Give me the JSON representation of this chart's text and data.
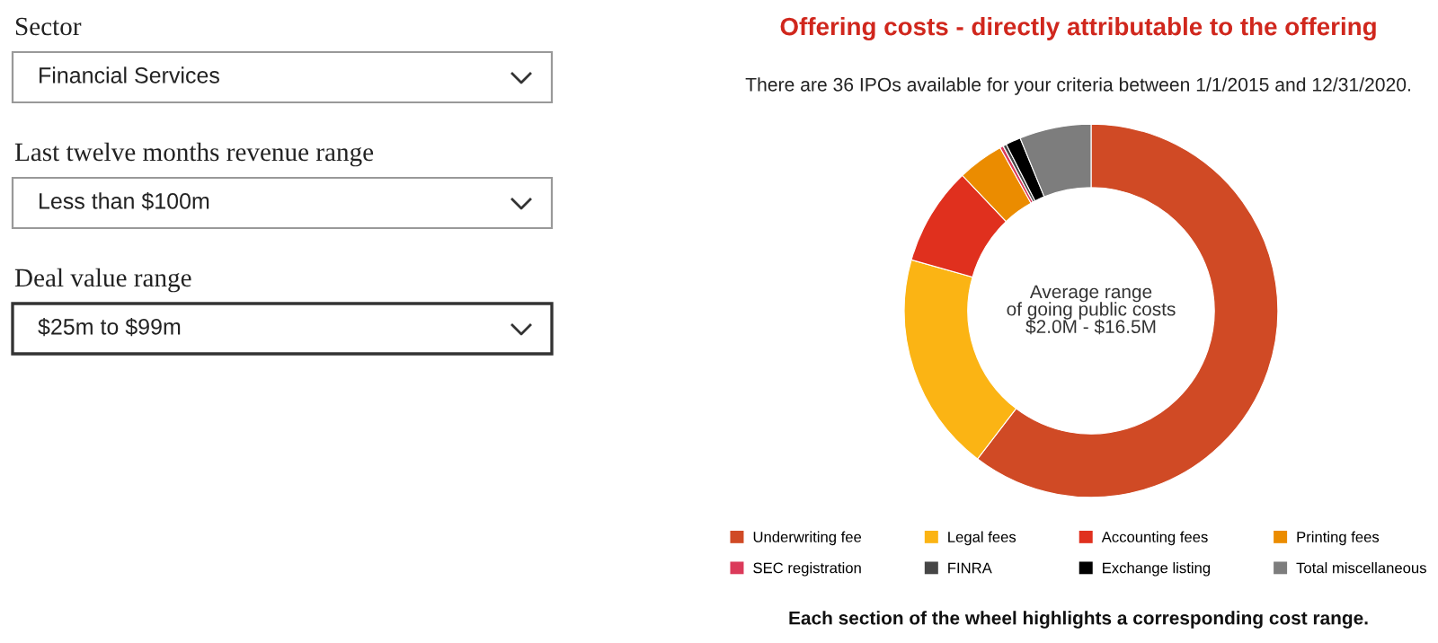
{
  "chart_data": {
    "type": "donut",
    "title": "Offering costs - directly attributable to the offering",
    "subtitle": "There are 36 IPOs available for your criteria between 1/1/2015 and 12/31/2020.",
    "categories": [
      "Underwriting fee",
      "Legal fees",
      "Accounting fees",
      "Printing fees",
      "SEC registration",
      "FINRA",
      "Exchange listing",
      "Total miscellaneous"
    ],
    "values": [
      60.4,
      19,
      8.5,
      4,
      0.3,
      0.3,
      1.3,
      6.2
    ],
    "colors": [
      "#d04a25",
      "#fbb414",
      "#e0301e",
      "#eb8c00",
      "#db3a5a",
      "#464646",
      "#000000",
      "#7d7d7d"
    ],
    "legend": "bottom",
    "annotations": [
      "Sector",
      "Financial Services",
      "Last twelve months revenue range",
      "Less than $100m",
      "Deal value range",
      "$25m to $99m",
      "Average range\nof going public costs\n$2.0M - $16.5M",
      "Each section of the wheel highlights a corresponding cost range."
    ]
  }
}
